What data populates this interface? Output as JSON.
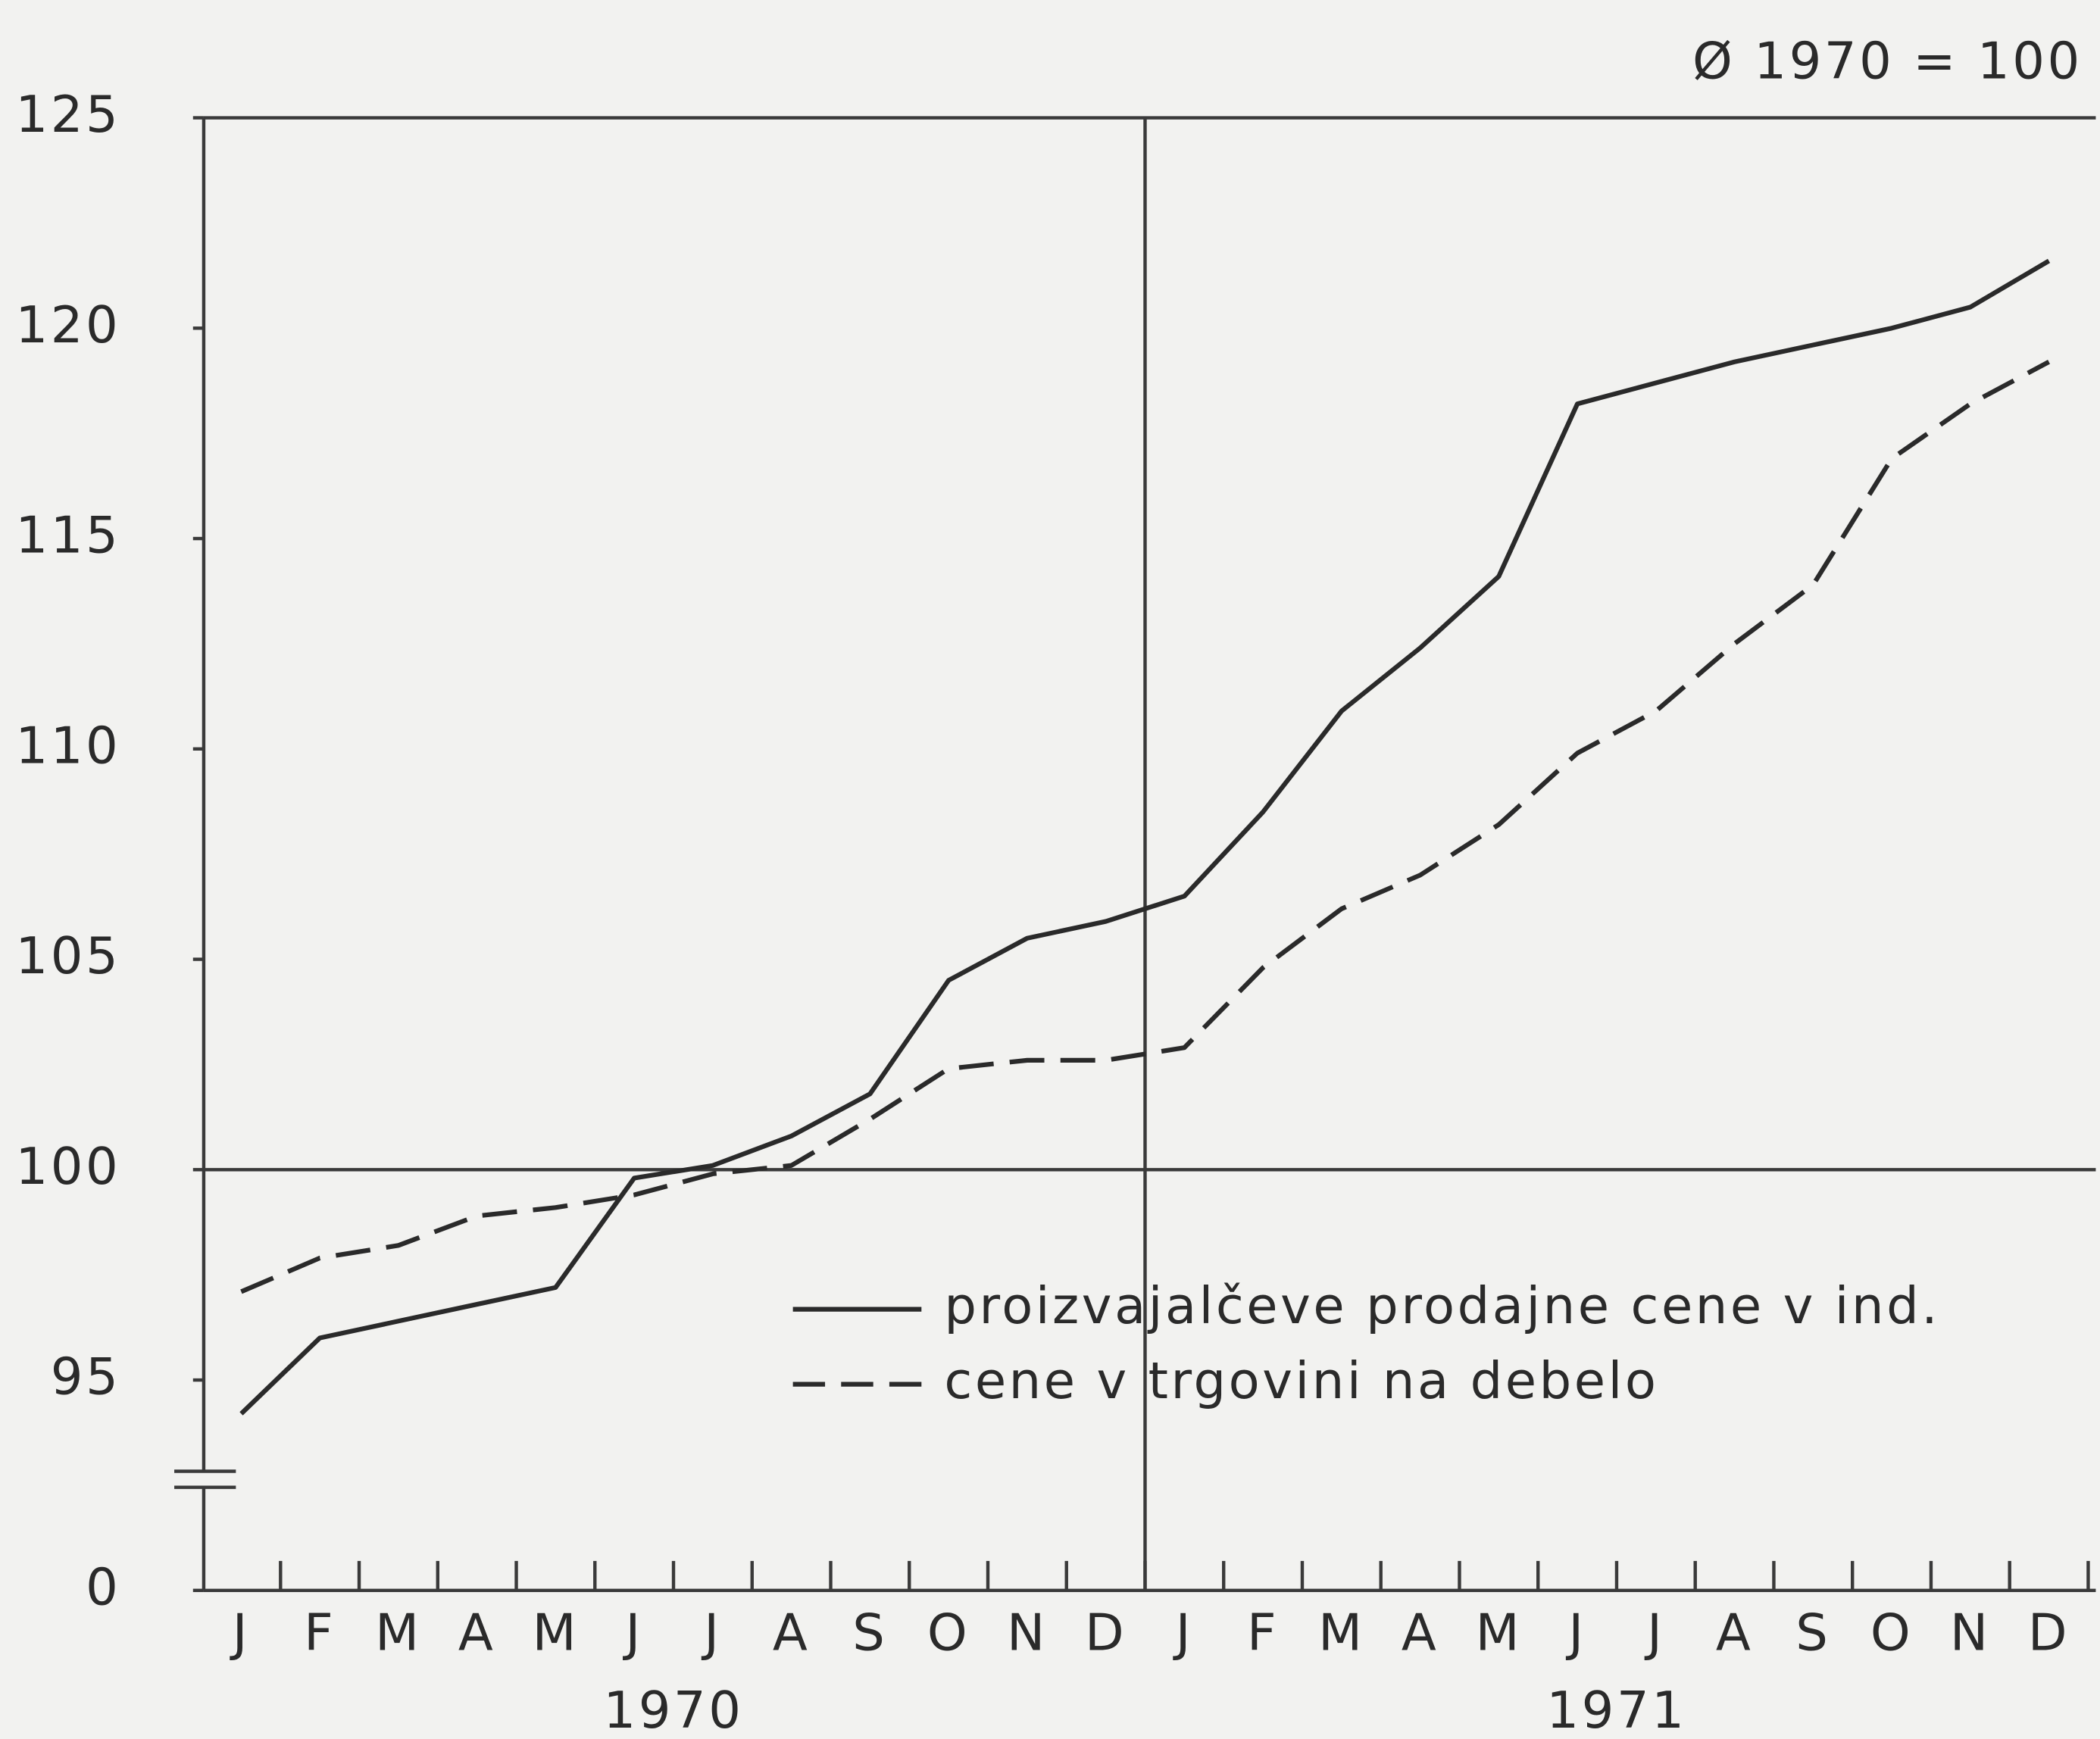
{
  "chart_data": {
    "type": "line",
    "annotation": "Ø 1970 = 100",
    "categories": [
      "J",
      "F",
      "M",
      "A",
      "M",
      "J",
      "J",
      "A",
      "S",
      "O",
      "N",
      "D",
      "J",
      "F",
      "M",
      "A",
      "M",
      "J",
      "J",
      "A",
      "S",
      "O",
      "N",
      "D"
    ],
    "years": [
      "1970",
      "1971"
    ],
    "series": [
      {
        "name": "proizvajalčeve prodajne cene v ind.",
        "color": "#2a2a2a",
        "dash": "solid",
        "values": [
          94.2,
          96.0,
          96.4,
          96.8,
          97.2,
          99.8,
          100.1,
          100.8,
          101.8,
          104.5,
          105.5,
          105.9,
          106.5,
          108.5,
          110.9,
          112.4,
          114.1,
          118.2,
          118.7,
          119.2,
          119.6,
          120.0,
          120.5,
          121.6
        ]
      },
      {
        "name": "cene v trgovini na debelo",
        "color": "#2a2a2a",
        "dash": "dashed",
        "values": [
          97.1,
          97.9,
          98.2,
          98.9,
          99.1,
          99.4,
          99.9,
          100.1,
          101.2,
          102.4,
          102.6,
          102.6,
          102.9,
          104.8,
          106.2,
          107.0,
          108.2,
          109.9,
          110.9,
          112.5,
          113.9,
          116.9,
          118.2,
          119.2
        ]
      }
    ],
    "ylim": [
      90,
      125
    ],
    "yticks": [
      0,
      95,
      100,
      105,
      110,
      115,
      120,
      125
    ],
    "y_axis_break": true,
    "reference_line": 100,
    "grid": false
  }
}
